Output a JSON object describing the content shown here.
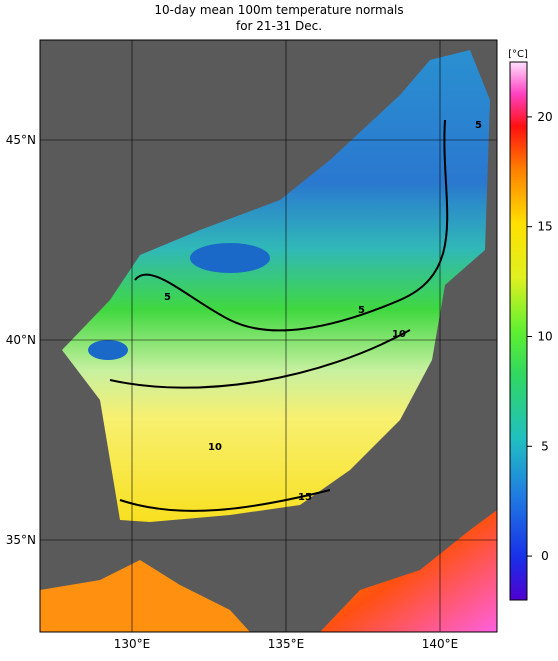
{
  "title": [
    "10-day mean 100m temperature normals",
    "for 21-31 Dec."
  ],
  "map": {
    "lon_ticks": [
      {
        "value": 130,
        "label": "130°E"
      },
      {
        "value": 135,
        "label": "135°E"
      },
      {
        "value": 140,
        "label": "140°E"
      }
    ],
    "lat_ticks": [
      {
        "value": 45,
        "label": "45°N"
      },
      {
        "value": 40,
        "label": "40°N"
      },
      {
        "value": 35,
        "label": "35°N"
      }
    ],
    "contour_labels": [
      "5",
      "5",
      "5",
      "10",
      "10",
      "15"
    ]
  },
  "colorbar": {
    "unit": "[°C]",
    "lim": [
      -2,
      22.5
    ],
    "ticks": [
      0,
      5,
      10,
      15,
      20
    ]
  }
}
